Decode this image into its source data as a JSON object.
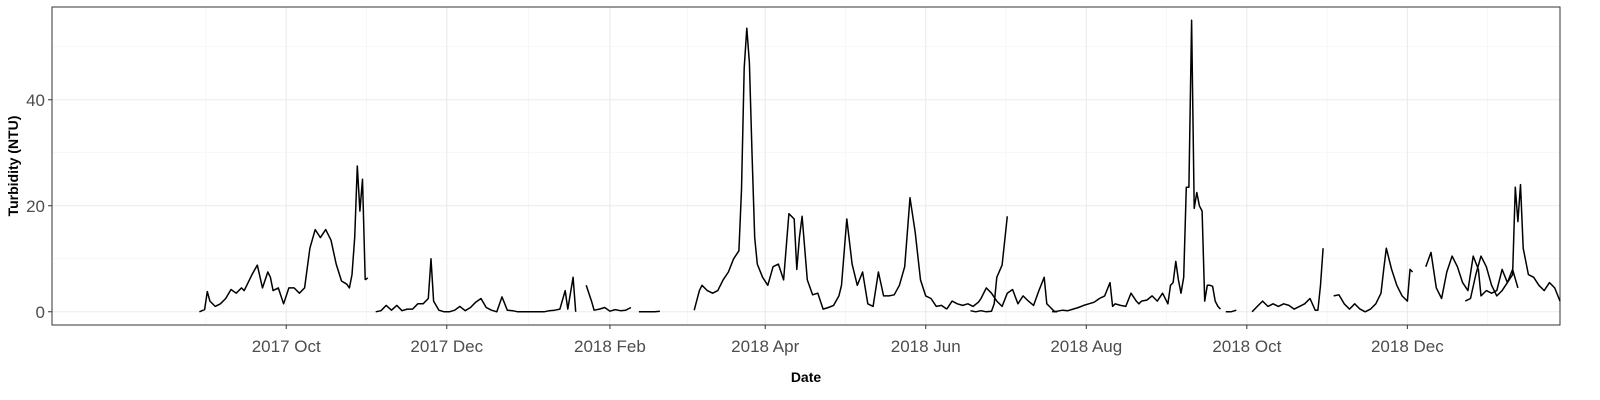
{
  "chart_data": {
    "type": "line",
    "title": "",
    "xlabel": "Date",
    "ylabel": "Turbidity (NTU)",
    "xlim": [
      "2017-07-04",
      "2019-01-28"
    ],
    "ylim": [
      -2.5,
      57.5
    ],
    "y_ticks": [
      0,
      20,
      40
    ],
    "x_ticks": [
      {
        "date": "2017-10-01",
        "label": "2017 Oct"
      },
      {
        "date": "2017-12-01",
        "label": "2017 Dec"
      },
      {
        "date": "2018-02-01",
        "label": "2018 Feb"
      },
      {
        "date": "2018-04-01",
        "label": "2018 Apr"
      },
      {
        "date": "2018-06-01",
        "label": "2018 Jun"
      },
      {
        "date": "2018-08-01",
        "label": "2018 Aug"
      },
      {
        "date": "2018-10-01",
        "label": "2018 Oct"
      },
      {
        "date": "2018-12-01",
        "label": "2018 Dec"
      }
    ],
    "grid": true,
    "line_color": "#000000",
    "series": [
      {
        "segments": [
          {
            "x": [
              "2017-08-29",
              "2017-08-31",
              "2017-09-01",
              "2017-09-02",
              "2017-09-04",
              "2017-09-06",
              "2017-09-08",
              "2017-09-10",
              "2017-09-12",
              "2017-09-14",
              "2017-09-15",
              "2017-09-16",
              "2017-09-18",
              "2017-09-20",
              "2017-09-22",
              "2017-09-24",
              "2017-09-25",
              "2017-09-26",
              "2017-09-28",
              "2017-09-30",
              "2017-10-02",
              "2017-10-04",
              "2017-10-06",
              "2017-10-08",
              "2017-10-10",
              "2017-10-12",
              "2017-10-14",
              "2017-10-16",
              "2017-10-18",
              "2017-10-20",
              "2017-10-22",
              "2017-10-24",
              "2017-10-25",
              "2017-10-26",
              "2017-10-27",
              "2017-10-28",
              "2017-10-29",
              "2017-10-30",
              "2017-10-31"
            ],
            "y": [
              0.0,
              0.4,
              3.8,
              2.0,
              1.0,
              1.5,
              2.5,
              4.2,
              3.5,
              4.5,
              4.0,
              5.0,
              7.0,
              8.8,
              4.5,
              7.5,
              6.5,
              4.0,
              4.5,
              1.5,
              4.5,
              4.5,
              3.5,
              4.5,
              12.0,
              15.5,
              14.0,
              15.5,
              13.5,
              9.0,
              5.8,
              5.2,
              4.5,
              7.0,
              14.0,
              27.5,
              19.0,
              25.0,
              6.0
            ]
          },
          {
            "x": [
              "2017-10-31",
              "2017-11-01"
            ],
            "y": [
              6.0,
              6.4
            ]
          }
        ]
      },
      {
        "segments": [
          {
            "x": [
              "2017-11-04",
              "2017-11-06",
              "2017-11-08",
              "2017-11-10",
              "2017-11-12",
              "2017-11-14",
              "2017-11-16",
              "2017-11-18",
              "2017-11-20",
              "2017-11-22",
              "2017-11-24",
              "2017-11-25",
              "2017-11-26",
              "2017-11-28",
              "2017-11-30",
              "2017-12-02",
              "2017-12-04",
              "2017-12-06",
              "2017-12-08",
              "2017-12-10",
              "2017-12-12",
              "2017-12-14",
              "2017-12-16",
              "2017-12-18",
              "2017-12-20",
              "2017-12-22",
              "2017-12-24",
              "2017-12-26",
              "2017-12-28",
              "2017-12-30",
              "2018-01-01",
              "2018-01-03",
              "2018-01-05",
              "2018-01-07",
              "2018-01-09",
              "2018-01-11",
              "2018-01-13",
              "2018-01-15",
              "2018-01-16",
              "2018-01-18",
              "2018-01-19"
            ],
            "y": [
              0.0,
              0.2,
              1.2,
              0.3,
              1.2,
              0.2,
              0.5,
              0.5,
              1.5,
              1.5,
              2.5,
              10.0,
              2.0,
              0.3,
              0.0,
              0.0,
              0.3,
              1.0,
              0.2,
              0.8,
              1.8,
              2.5,
              0.8,
              0.3,
              0.0,
              2.8,
              0.3,
              0.2,
              0.0,
              0.0,
              0.0,
              0.0,
              0.0,
              0.0,
              0.2,
              0.3,
              0.5,
              4.0,
              0.5,
              6.5,
              0.0
            ]
          },
          {
            "x": [
              "2018-01-23",
              "2018-01-25",
              "2018-01-26",
              "2018-01-28",
              "2018-01-30",
              "2018-02-01",
              "2018-02-03",
              "2018-02-05",
              "2018-02-07",
              "2018-02-09"
            ],
            "y": [
              5.0,
              2.0,
              0.3,
              0.5,
              0.8,
              0.1,
              0.4,
              0.2,
              0.3,
              0.8
            ]
          },
          {
            "x": [
              "2018-02-12",
              "2018-02-14",
              "2018-02-16",
              "2018-02-18",
              "2018-02-20"
            ],
            "y": [
              0.0,
              0.0,
              0.0,
              0.0,
              0.1
            ]
          }
        ]
      },
      {
        "segments": [
          {
            "x": [
              "2018-03-05",
              "2018-03-07",
              "2018-03-08",
              "2018-03-10",
              "2018-03-12",
              "2018-03-14",
              "2018-03-16",
              "2018-03-18",
              "2018-03-20",
              "2018-03-22",
              "2018-03-23",
              "2018-03-24",
              "2018-03-25",
              "2018-03-26",
              "2018-03-27",
              "2018-03-28",
              "2018-03-29",
              "2018-03-31",
              "2018-04-02",
              "2018-04-04",
              "2018-04-06",
              "2018-04-08",
              "2018-04-10",
              "2018-04-12",
              "2018-04-13",
              "2018-04-14",
              "2018-04-15",
              "2018-04-17",
              "2018-04-19",
              "2018-04-21",
              "2018-04-23",
              "2018-04-25",
              "2018-04-27",
              "2018-04-29",
              "2018-04-30",
              "2018-05-02",
              "2018-05-04",
              "2018-05-06",
              "2018-05-08",
              "2018-05-10",
              "2018-05-12",
              "2018-05-14",
              "2018-05-16",
              "2018-05-18",
              "2018-05-20",
              "2018-05-22",
              "2018-05-24",
              "2018-05-26",
              "2018-05-28",
              "2018-05-30",
              "2018-06-01",
              "2018-06-03",
              "2018-06-05",
              "2018-06-07",
              "2018-06-09"
            ],
            "y": [
              0.3,
              4.0,
              5.0,
              4.0,
              3.5,
              4.0,
              6.0,
              7.5,
              10.0,
              11.5,
              23.0,
              46.0,
              53.5,
              47.0,
              30.0,
              14.0,
              9.0,
              6.5,
              5.0,
              8.5,
              9.0,
              6.0,
              18.5,
              17.5,
              8.0,
              14.0,
              18.0,
              6.0,
              3.2,
              3.5,
              0.5,
              0.8,
              1.2,
              3.0,
              5.0,
              17.5,
              9.0,
              5.0,
              7.5,
              1.5,
              1.0,
              7.5,
              3.0,
              3.0,
              3.2,
              5.0,
              8.5,
              21.5,
              15.0,
              6.0,
              3.0,
              2.5,
              1.0,
              1.2,
              0.5
            ]
          },
          {
            "x": [
              "2018-06-09",
              "2018-06-11",
              "2018-06-13",
              "2018-06-15",
              "2018-06-17",
              "2018-06-19",
              "2018-06-21",
              "2018-06-22",
              "2018-06-24",
              "2018-06-26",
              "2018-06-28",
              "2018-06-30",
              "2018-07-02",
              "2018-07-04",
              "2018-07-06",
              "2018-07-08",
              "2018-07-10",
              "2018-07-12",
              "2018-07-14",
              "2018-07-16",
              "2018-07-17",
              "2018-07-18",
              "2018-07-20",
              "2018-07-21"
            ],
            "y": [
              0.5,
              2.0,
              1.5,
              1.2,
              1.5,
              1.0,
              1.8,
              2.5,
              4.5,
              3.5,
              2.0,
              1.0,
              3.5,
              4.2,
              1.5,
              3.0,
              2.0,
              1.2,
              4.0,
              6.5,
              1.5,
              1.0,
              0.0,
              0.0
            ]
          }
        ]
      },
      {
        "segments": [
          {
            "x": [
              "2018-06-18",
              "2018-06-20",
              "2018-06-22",
              "2018-06-24",
              "2018-06-26",
              "2018-06-27",
              "2018-06-28",
              "2018-06-30",
              "2018-07-02"
            ],
            "y": [
              0.2,
              0.0,
              0.2,
              0.0,
              0.1,
              1.5,
              6.5,
              8.8,
              18.0
            ]
          }
        ]
      },
      {
        "segments": [
          {
            "x": [
              "2018-07-19",
              "2018-07-21",
              "2018-07-23",
              "2018-07-25",
              "2018-07-27",
              "2018-07-29",
              "2018-07-31",
              "2018-08-02",
              "2018-08-04",
              "2018-08-06",
              "2018-08-08",
              "2018-08-10",
              "2018-08-11",
              "2018-08-12",
              "2018-08-14",
              "2018-08-16",
              "2018-08-18",
              "2018-08-20",
              "2018-08-21",
              "2018-08-22",
              "2018-08-24",
              "2018-08-26",
              "2018-08-28",
              "2018-08-30",
              "2018-09-01",
              "2018-09-02",
              "2018-09-03",
              "2018-09-04",
              "2018-09-05",
              "2018-09-06",
              "2018-09-07",
              "2018-09-08",
              "2018-09-09",
              "2018-09-10",
              "2018-09-11",
              "2018-09-12",
              "2018-09-13",
              "2018-09-14",
              "2018-09-15",
              "2018-09-16",
              "2018-09-17",
              "2018-09-18",
              "2018-09-19",
              "2018-09-20",
              "2018-09-21"
            ],
            "y": [
              0.0,
              0.1,
              0.3,
              0.2,
              0.5,
              0.8,
              1.2,
              1.5,
              1.8,
              2.5,
              3.0,
              5.5,
              1.0,
              1.5,
              1.2,
              1.0,
              3.5,
              2.0,
              1.5,
              2.0,
              2.2,
              3.0,
              2.0,
              3.5,
              1.5,
              5.0,
              5.5,
              9.5,
              6.0,
              3.5,
              6.5,
              23.5,
              23.5,
              55.0,
              19.5,
              22.5,
              20.0,
              19.0,
              2.0,
              5.0,
              5.0,
              4.8,
              2.0,
              1.0,
              0.5
            ]
          },
          {
            "x": [
              "2018-09-23",
              "2018-09-25",
              "2018-09-27"
            ],
            "y": [
              0.0,
              0.0,
              0.3
            ]
          }
        ]
      },
      {
        "segments": [
          {
            "x": [
              "2018-10-03",
              "2018-10-05",
              "2018-10-07",
              "2018-10-09",
              "2018-10-11",
              "2018-10-13",
              "2018-10-15",
              "2018-10-17",
              "2018-10-19",
              "2018-10-21",
              "2018-10-23",
              "2018-10-25",
              "2018-10-27",
              "2018-10-28",
              "2018-10-29",
              "2018-10-30"
            ],
            "y": [
              0.0,
              1.0,
              2.0,
              1.0,
              1.5,
              1.0,
              1.5,
              1.2,
              0.5,
              1.0,
              1.5,
              2.5,
              0.3,
              0.3,
              5.0,
              12.0
            ]
          },
          {
            "x": [
              "2018-11-03",
              "2018-11-05",
              "2018-11-07",
              "2018-11-09",
              "2018-11-11",
              "2018-11-13",
              "2018-11-15",
              "2018-11-17",
              "2018-11-19",
              "2018-11-21",
              "2018-11-22",
              "2018-11-23",
              "2018-11-25",
              "2018-11-27",
              "2018-11-29",
              "2018-12-01",
              "2018-12-02",
              "2018-12-03"
            ],
            "y": [
              3.0,
              3.2,
              1.5,
              0.5,
              1.5,
              0.5,
              0.0,
              0.5,
              1.5,
              3.5,
              8.0,
              12.0,
              8.0,
              5.0,
              3.0,
              2.0,
              8.0,
              7.5
            ]
          },
          {
            "x": [
              "2018-12-08",
              "2018-12-10",
              "2018-12-12",
              "2018-12-14",
              "2018-12-16",
              "2018-12-18",
              "2018-12-20",
              "2018-12-22",
              "2018-12-24",
              "2018-12-26",
              "2018-12-28",
              "2018-12-29",
              "2018-12-31",
              "2019-01-02",
              "2019-01-04",
              "2019-01-06",
              "2019-01-08",
              "2019-01-10",
              "2019-01-12"
            ],
            "y": [
              8.5,
              11.2,
              4.5,
              2.5,
              7.5,
              10.5,
              8.5,
              5.5,
              4.0,
              10.5,
              8.0,
              3.0,
              4.0,
              3.5,
              4.0,
              8.0,
              5.5,
              8.0,
              4.5
            ]
          },
          {
            "x": [
              "2018-12-23",
              "2018-12-25",
              "2018-12-27",
              "2018-12-29",
              "2018-12-31",
              "2019-01-02",
              "2019-01-04",
              "2019-01-06",
              "2019-01-08",
              "2019-01-10",
              "2019-01-11",
              "2019-01-12",
              "2019-01-13",
              "2019-01-14",
              "2019-01-16",
              "2019-01-18",
              "2019-01-20",
              "2019-01-22",
              "2019-01-24",
              "2019-01-26",
              "2019-01-28"
            ],
            "y": [
              2.0,
              2.5,
              7.0,
              10.5,
              8.5,
              5.0,
              3.0,
              4.0,
              5.5,
              7.0,
              23.5,
              17.0,
              24.0,
              12.0,
              7.0,
              6.5,
              5.0,
              4.0,
              5.5,
              4.5,
              2.0
            ]
          }
        ]
      }
    ]
  }
}
